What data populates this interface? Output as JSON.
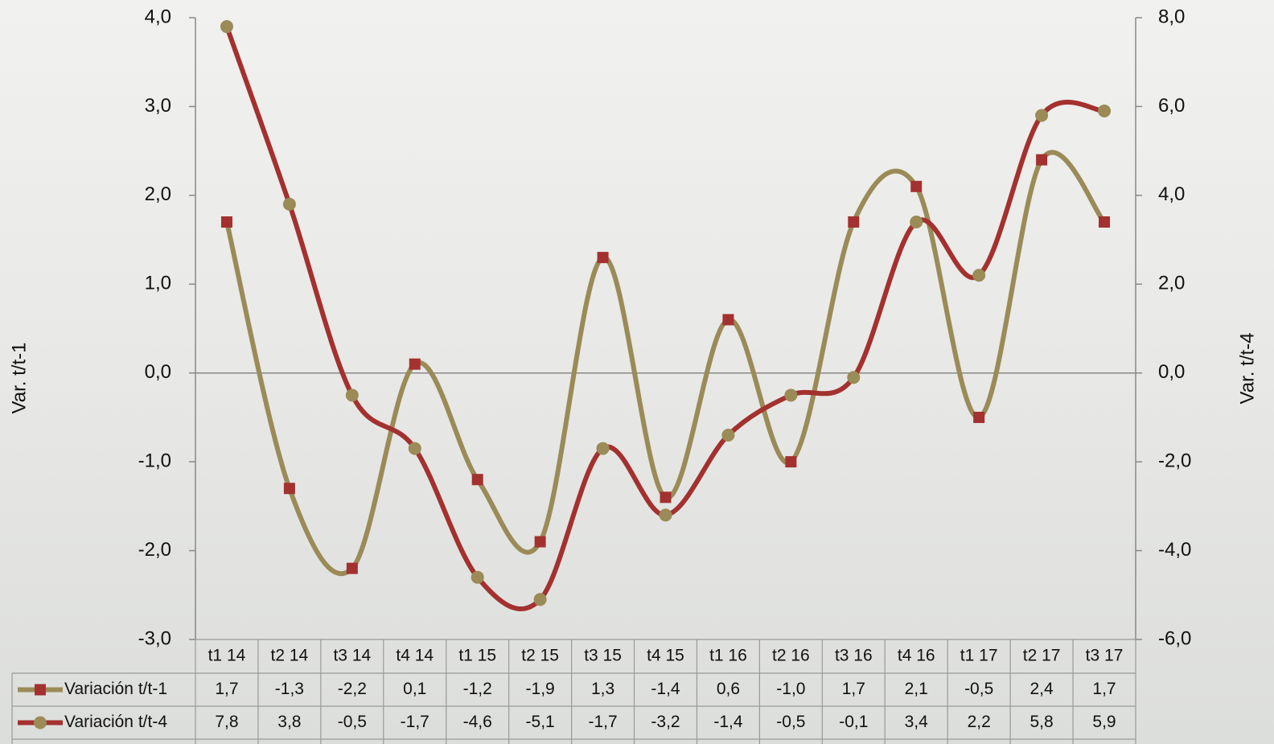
{
  "chart_data": {
    "type": "line",
    "smooth": true,
    "categories": [
      "t1 14",
      "t2 14",
      "t3 14",
      "t4 14",
      "t1 15",
      "t2 15",
      "t3 15",
      "t4 15",
      "t1 16",
      "t2 16",
      "t3 16",
      "t4 16",
      "t1 17",
      "t2 17",
      "t3 17"
    ],
    "ylabel": "Var. t/t-1",
    "y2label": "Var. t/t-4",
    "ylim": [
      -3,
      4
    ],
    "yticks": [
      {
        "value": -3,
        "label": "-3,0"
      },
      {
        "value": -2,
        "label": "-2,0"
      },
      {
        "value": -1,
        "label": "-1,0"
      },
      {
        "value": 0,
        "label": "0,0"
      },
      {
        "value": 1,
        "label": "1,0"
      },
      {
        "value": 2,
        "label": "2,0"
      },
      {
        "value": 3,
        "label": "3,0"
      },
      {
        "value": 4,
        "label": "4,0"
      }
    ],
    "y2lim": [
      -6,
      8
    ],
    "y2ticks": [
      {
        "value": -6,
        "label": "-6,0"
      },
      {
        "value": -4,
        "label": "-4,0"
      },
      {
        "value": -2,
        "label": "-2,0"
      },
      {
        "value": 0,
        "label": "0,0"
      },
      {
        "value": 2,
        "label": "2,0"
      },
      {
        "value": 4,
        "label": "4,0"
      },
      {
        "value": 6,
        "label": "6,0"
      },
      {
        "value": 8,
        "label": "8,0"
      }
    ],
    "series": [
      {
        "name": "Variación t/t-1",
        "color": "#9a8b57",
        "marker_color": "#a3312f",
        "marker": "square",
        "axis": "y",
        "values": [
          1.7,
          -1.3,
          -2.2,
          0.1,
          -1.2,
          -1.9,
          1.3,
          -1.4,
          0.6,
          -1.0,
          1.7,
          2.1,
          -0.5,
          2.4,
          1.7
        ],
        "value_labels": [
          "1,7",
          "-1,3",
          "-2,2",
          "0,1",
          "-1,2",
          "-1,9",
          "1,3",
          "-1,4",
          "0,6",
          "-1,0",
          "1,7",
          "2,1",
          "-0,5",
          "2,4",
          "1,7"
        ]
      },
      {
        "name": "Variación t/t-4",
        "color": "#a3312f",
        "marker_color": "#9a8b57",
        "marker": "circle",
        "axis": "y2",
        "values": [
          7.8,
          3.8,
          -0.5,
          -1.7,
          -4.6,
          -5.1,
          -1.7,
          -3.2,
          -1.4,
          -0.5,
          -0.1,
          3.4,
          2.2,
          5.8,
          5.9
        ],
        "value_labels": [
          "7,8",
          "3,8",
          "-0,5",
          "-1,7",
          "-4,6",
          "-5,1",
          "-1,7",
          "-3,2",
          "-1,4",
          "-0,5",
          "-0,1",
          "3,4",
          "2,2",
          "5,8",
          "5,9"
        ]
      }
    ]
  }
}
